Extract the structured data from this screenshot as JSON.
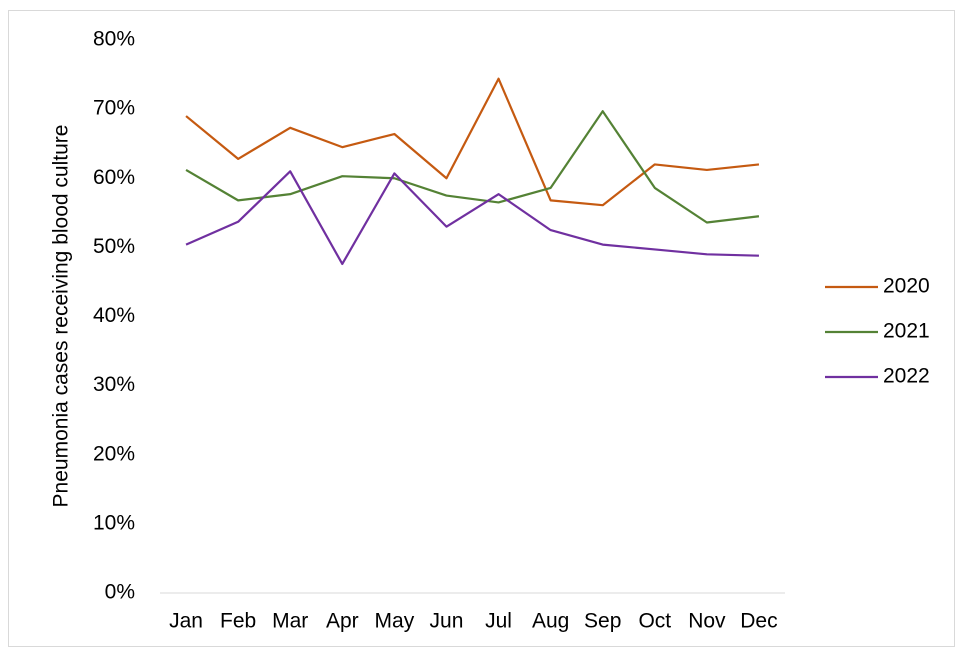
{
  "chart_data": {
    "type": "line",
    "y_label": "Pneumonia cases receiving blood culture",
    "categories": [
      "Jan",
      "Feb",
      "Mar",
      "Apr",
      "May",
      "Jun",
      "Jul",
      "Aug",
      "Sep",
      "Oct",
      "Nov",
      "Dec"
    ],
    "series": [
      {
        "name": "2020",
        "color": "#c55a11",
        "values": [
          69,
          62.8,
          67.3,
          64.5,
          66.4,
          60,
          74.4,
          56.8,
          56.1,
          62,
          61.2,
          62
        ]
      },
      {
        "name": "2021",
        "color": "#548235",
        "values": [
          61.2,
          56.8,
          57.7,
          60.3,
          60,
          57.5,
          56.5,
          58.6,
          69.7,
          58.6,
          53.6,
          54.5
        ]
      },
      {
        "name": "2022",
        "color": "#7030a0",
        "values": [
          50.4,
          53.7,
          61,
          47.6,
          60.7,
          53,
          57.7,
          52.5,
          50.4,
          49.7,
          49,
          48.8
        ]
      }
    ],
    "ylim": [
      0,
      80
    ],
    "yticks": [
      {
        "value": 0,
        "label": "0%"
      },
      {
        "value": 10,
        "label": "10%"
      },
      {
        "value": 20,
        "label": "20%"
      },
      {
        "value": 30,
        "label": "30%"
      },
      {
        "value": 40,
        "label": "40%"
      },
      {
        "value": 50,
        "label": "50%"
      },
      {
        "value": 60,
        "label": "60%"
      },
      {
        "value": 70,
        "label": "70%"
      },
      {
        "value": 80,
        "label": "80%"
      }
    ],
    "grid": false,
    "legend": "right"
  }
}
